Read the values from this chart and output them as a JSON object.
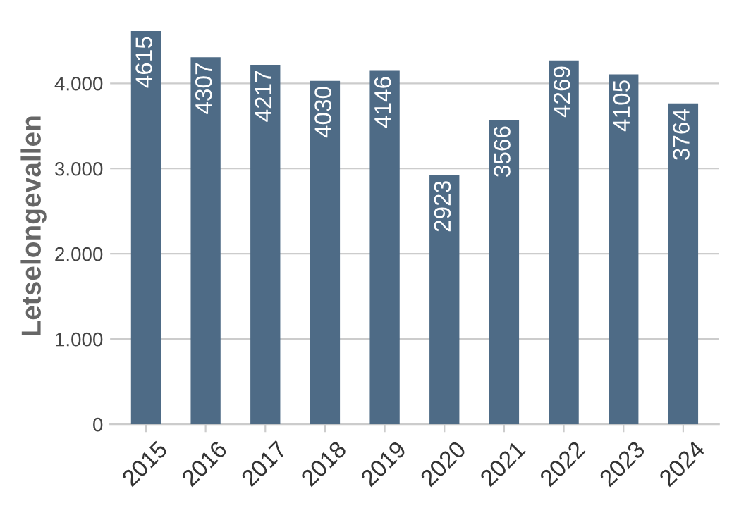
{
  "chart_data": {
    "type": "bar",
    "ylabel": "Letselongevallen",
    "categories": [
      "2015",
      "2016",
      "2017",
      "2018",
      "2019",
      "2020",
      "2021",
      "2022",
      "2023",
      "2024"
    ],
    "values": [
      4615,
      4307,
      4217,
      4030,
      4146,
      2923,
      3566,
      4269,
      4105,
      3764
    ],
    "color": "#4e6b86",
    "ylim": [
      0,
      4650
    ],
    "yticks": [
      0,
      {
        "value": 1000,
        "label": "1.000"
      },
      {
        "value": 2000,
        "label": "2.000"
      },
      {
        "value": 3000,
        "label": "3.000"
      },
      {
        "value": 4000,
        "label": "4.000"
      }
    ],
    "grid": "y",
    "data_labels": true
  }
}
